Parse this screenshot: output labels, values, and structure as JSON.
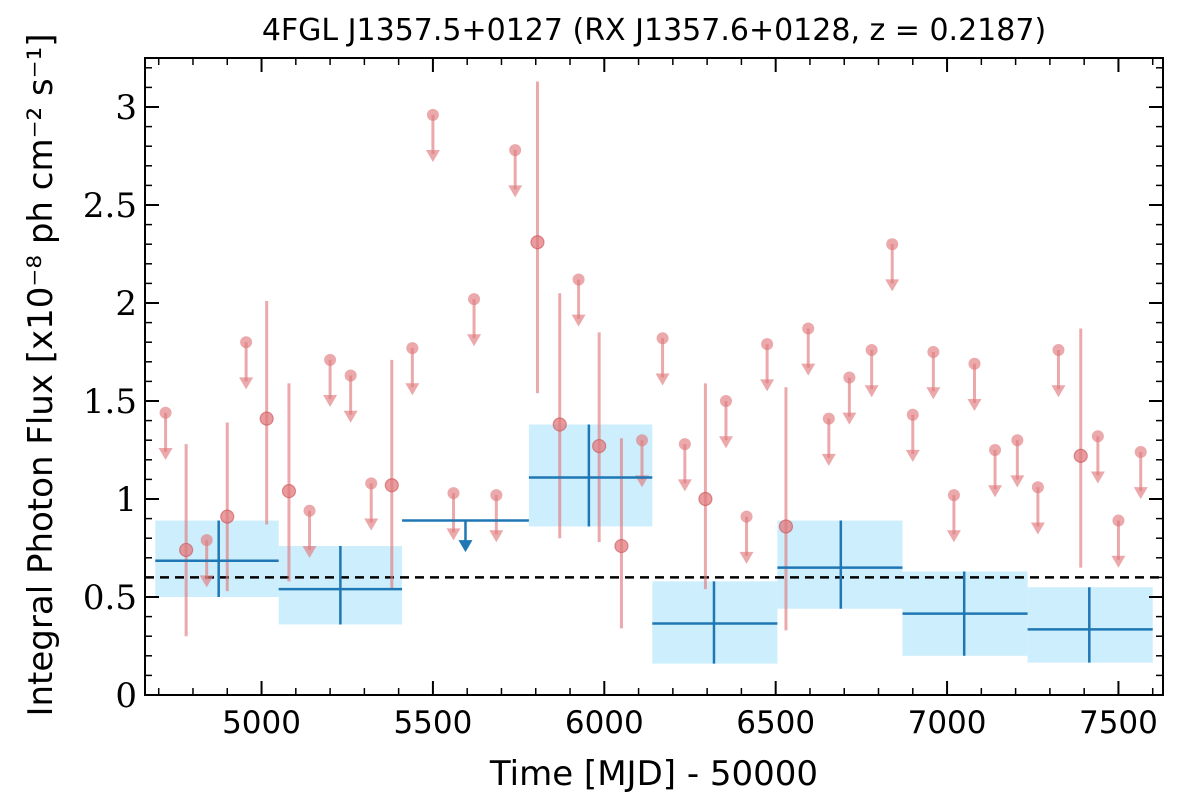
{
  "chart_data": {
    "type": "scatter",
    "title": "4FGL J1357.5+0127 (RX J1357.6+0128, z = 0.2187)",
    "xlabel": "Time [MJD] - 50000",
    "ylabel": "Integral Photon Flux [x10⁻⁸ ph cm⁻² s⁻¹]",
    "xlim": [
      4660,
      7630
    ],
    "ylim": [
      0,
      3.25
    ],
    "xticks": [
      5000,
      5500,
      6000,
      6500,
      7000,
      7500
    ],
    "xtick_labels": [
      "5000",
      "5500",
      "6000",
      "6500",
      "7000",
      "7500"
    ],
    "yticks": [
      0,
      0.5,
      1,
      1.5,
      2,
      2.5,
      3
    ],
    "ytick_labels": [
      "0",
      "0.5",
      "1",
      "1.5",
      "2",
      "2.5",
      "3"
    ],
    "reference_line": {
      "y": 0.6,
      "style": "dashed",
      "color": "#000000"
    },
    "colors": {
      "short_bins": "#e07b7e",
      "long_bins": "#1f77b4",
      "long_bins_band": "#cdeefc"
    },
    "series": [
      {
        "marker": "circle",
        "detections": [
          {
            "x": 4780,
            "y": 0.74,
            "lo": 0.3,
            "hi": 1.28
          },
          {
            "x": 4900,
            "y": 0.91,
            "lo": 0.53,
            "hi": 1.39
          },
          {
            "x": 5015,
            "y": 1.41,
            "lo": 0.87,
            "hi": 2.01
          },
          {
            "x": 5080,
            "y": 1.04,
            "lo": 0.58,
            "hi": 1.59
          },
          {
            "x": 5380,
            "y": 1.07,
            "lo": 0.54,
            "hi": 1.71
          },
          {
            "x": 5805,
            "y": 2.31,
            "lo": 1.54,
            "hi": 3.13
          },
          {
            "x": 5870,
            "y": 1.38,
            "lo": 0.8,
            "hi": 2.05
          },
          {
            "x": 5985,
            "y": 1.27,
            "lo": 0.78,
            "hi": 1.85
          },
          {
            "x": 6050,
            "y": 0.76,
            "lo": 0.34,
            "hi": 1.31
          },
          {
            "x": 6295,
            "y": 1.0,
            "lo": 0.54,
            "hi": 1.59
          },
          {
            "x": 6530,
            "y": 0.86,
            "lo": 0.33,
            "hi": 1.57
          },
          {
            "x": 7390,
            "y": 1.22,
            "lo": 0.65,
            "hi": 1.87
          }
        ],
        "upper_limits": [
          {
            "x": 4720,
            "y": 1.44
          },
          {
            "x": 4840,
            "y": 0.79
          },
          {
            "x": 4955,
            "y": 1.8
          },
          {
            "x": 5140,
            "y": 0.94
          },
          {
            "x": 5200,
            "y": 1.71
          },
          {
            "x": 5260,
            "y": 1.63
          },
          {
            "x": 5320,
            "y": 1.08
          },
          {
            "x": 5440,
            "y": 1.77
          },
          {
            "x": 5500,
            "y": 2.96
          },
          {
            "x": 5560,
            "y": 1.03
          },
          {
            "x": 5620,
            "y": 2.02
          },
          {
            "x": 5685,
            "y": 1.02
          },
          {
            "x": 5740,
            "y": 2.78
          },
          {
            "x": 5925,
            "y": 2.12
          },
          {
            "x": 6110,
            "y": 1.3
          },
          {
            "x": 6170,
            "y": 1.82
          },
          {
            "x": 6235,
            "y": 1.28
          },
          {
            "x": 6355,
            "y": 1.5
          },
          {
            "x": 6415,
            "y": 0.91
          },
          {
            "x": 6475,
            "y": 1.79
          },
          {
            "x": 6595,
            "y": 1.87
          },
          {
            "x": 6655,
            "y": 1.41
          },
          {
            "x": 6715,
            "y": 1.62
          },
          {
            "x": 6780,
            "y": 1.76
          },
          {
            "x": 6840,
            "y": 2.3
          },
          {
            "x": 6900,
            "y": 1.43
          },
          {
            "x": 6960,
            "y": 1.75
          },
          {
            "x": 7020,
            "y": 1.02
          },
          {
            "x": 7080,
            "y": 1.69
          },
          {
            "x": 7140,
            "y": 1.25
          },
          {
            "x": 7205,
            "y": 1.3
          },
          {
            "x": 7265,
            "y": 1.06
          },
          {
            "x": 7325,
            "y": 1.76
          },
          {
            "x": 7440,
            "y": 1.32
          },
          {
            "x": 7500,
            "y": 0.89
          },
          {
            "x": 7565,
            "y": 1.24
          }
        ]
      },
      {
        "marker": "crosshair",
        "detections": [
          {
            "x": 4875,
            "y": 0.685,
            "x0": 4690,
            "x1": 5050,
            "lo": 0.5,
            "hi": 0.89,
            "band_lo": 0.5,
            "band_hi": 0.89
          },
          {
            "x": 5230,
            "y": 0.54,
            "x0": 5050,
            "x1": 5410,
            "lo": 0.36,
            "hi": 0.76,
            "band_lo": 0.36,
            "band_hi": 0.76
          },
          {
            "x": 5955,
            "y": 1.11,
            "x0": 5780,
            "x1": 6140,
            "lo": 0.86,
            "hi": 1.38,
            "band_lo": 0.86,
            "band_hi": 1.38
          },
          {
            "x": 6320,
            "y": 0.365,
            "x0": 6140,
            "x1": 6505,
            "lo": 0.16,
            "hi": 0.58,
            "band_lo": 0.16,
            "band_hi": 0.58
          },
          {
            "x": 6690,
            "y": 0.65,
            "x0": 6505,
            "x1": 6870,
            "lo": 0.44,
            "hi": 0.89,
            "band_lo": 0.44,
            "band_hi": 0.89
          },
          {
            "x": 7050,
            "y": 0.415,
            "x0": 6870,
            "x1": 7235,
            "lo": 0.2,
            "hi": 0.63,
            "band_lo": 0.2,
            "band_hi": 0.63
          },
          {
            "x": 7415,
            "y": 0.335,
            "x0": 7235,
            "x1": 7600,
            "lo": 0.165,
            "hi": 0.55,
            "band_lo": 0.165,
            "band_hi": 0.55
          }
        ],
        "upper_limits": [
          {
            "x": 5595,
            "y": 0.89,
            "x0": 5410,
            "x1": 5780
          }
        ]
      }
    ]
  }
}
